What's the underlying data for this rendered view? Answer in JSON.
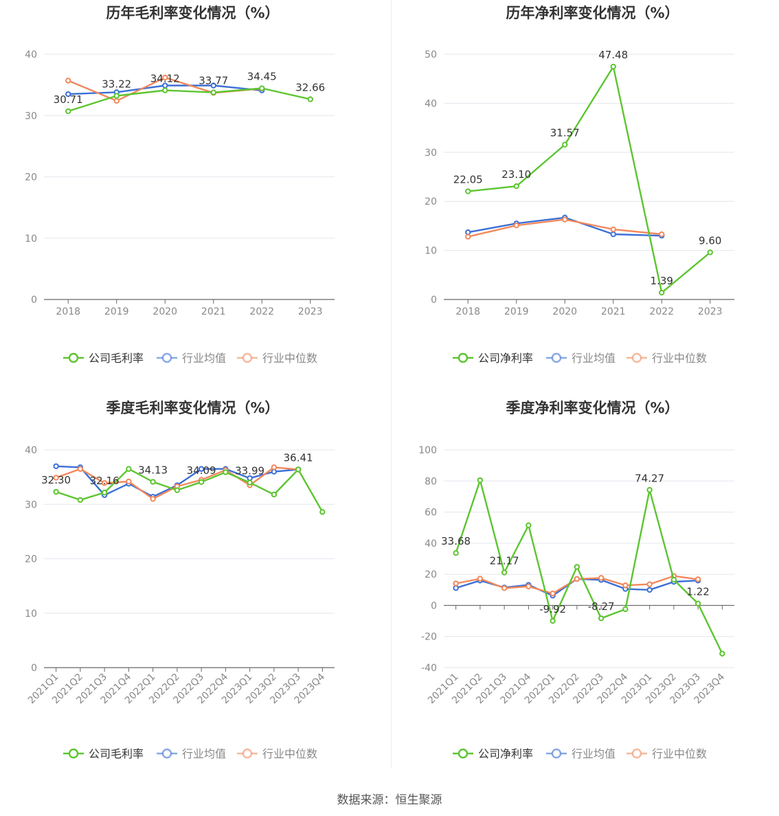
{
  "source_label": "数据来源：恒生聚源",
  "legend_labels": {
    "gross": [
      "公司毛利率",
      "行业均值",
      "行业中位数"
    ],
    "net": [
      "公司净利率",
      "行业均值",
      "行业中位数"
    ]
  },
  "colors": {
    "company": "#5cc52f",
    "avg": "#3b6fd6",
    "median": "#f2885b"
  },
  "chart_data": [
    {
      "type": "line",
      "title": "历年毛利率变化情况（%）",
      "categories": [
        "2018",
        "2019",
        "2020",
        "2021",
        "2022",
        "2023"
      ],
      "ylim": [
        0,
        40
      ],
      "yticks": [
        0,
        10,
        20,
        30,
        40
      ],
      "series": [
        {
          "name": "公司毛利率",
          "values": [
            30.71,
            33.22,
            34.12,
            33.77,
            34.45,
            32.66
          ],
          "labels": [
            "30.71",
            "33.22",
            "34.12",
            "33.77",
            "34.45",
            "32.66"
          ]
        },
        {
          "name": "行业均值",
          "values": [
            33.5,
            33.8,
            34.9,
            34.9,
            34.1,
            null
          ]
        },
        {
          "name": "行业中位数",
          "values": [
            35.7,
            32.4,
            36.2,
            33.7,
            34.4,
            null
          ]
        }
      ]
    },
    {
      "type": "line",
      "title": "历年净利率变化情况（%）",
      "categories": [
        "2018",
        "2019",
        "2020",
        "2021",
        "2022",
        "2023"
      ],
      "ylim": [
        0,
        50
      ],
      "yticks": [
        0,
        10,
        20,
        30,
        40,
        50
      ],
      "series": [
        {
          "name": "公司净利率",
          "values": [
            22.05,
            23.1,
            31.57,
            47.48,
            1.39,
            9.6
          ],
          "labels": [
            "22.05",
            "23.10",
            "31.57",
            "47.48",
            "1.39",
            "9.60"
          ]
        },
        {
          "name": "行业均值",
          "values": [
            13.7,
            15.5,
            16.7,
            13.3,
            13.0,
            null
          ]
        },
        {
          "name": "行业中位数",
          "values": [
            12.8,
            15.1,
            16.3,
            14.3,
            13.3,
            null
          ]
        }
      ]
    },
    {
      "type": "line",
      "title": "季度毛利率变化情况（%）",
      "categories": [
        "2021Q1",
        "2021Q2",
        "2021Q3",
        "2021Q4",
        "2022Q1",
        "2022Q2",
        "2022Q3",
        "2022Q4",
        "2023Q1",
        "2023Q2",
        "2023Q3",
        "2023Q4"
      ],
      "ylim": [
        0,
        40
      ],
      "yticks": [
        0,
        10,
        20,
        30,
        40
      ],
      "series": [
        {
          "name": "公司毛利率",
          "values": [
            32.3,
            30.8,
            32.16,
            36.5,
            34.13,
            32.6,
            34.09,
            35.9,
            33.99,
            31.8,
            36.41,
            28.6
          ],
          "labels": [
            "32.30",
            "",
            "32.16",
            "",
            "34.13",
            "",
            "34.09",
            "",
            "33.99",
            "",
            "36.41",
            ""
          ]
        },
        {
          "name": "行业均值",
          "values": [
            37.0,
            36.8,
            31.7,
            33.8,
            31.4,
            33.5,
            36.5,
            36.5,
            34.8,
            36.0,
            36.4,
            null
          ]
        },
        {
          "name": "行业中位数",
          "values": [
            34.9,
            36.5,
            33.9,
            34.2,
            31.0,
            33.3,
            34.5,
            36.3,
            33.5,
            36.8,
            36.4,
            null
          ]
        }
      ]
    },
    {
      "type": "line",
      "title": "季度净利率变化情况（%）",
      "categories": [
        "2021Q1",
        "2021Q2",
        "2021Q3",
        "2021Q4",
        "2022Q1",
        "2022Q2",
        "2022Q3",
        "2022Q4",
        "2023Q1",
        "2023Q2",
        "2023Q3",
        "2023Q4"
      ],
      "ylim": [
        -40,
        100
      ],
      "yticks": [
        -40,
        -20,
        0,
        20,
        40,
        60,
        80,
        100
      ],
      "series": [
        {
          "name": "公司净利率",
          "values": [
            33.68,
            80.5,
            21.17,
            51.5,
            -9.92,
            24.8,
            -8.27,
            -2.4,
            74.27,
            16.5,
            1.22,
            -31.0
          ],
          "labels": [
            "33.68",
            "",
            "21.17",
            "",
            "-9.92",
            "",
            "-8.27",
            "",
            "74.27",
            "",
            "1.22",
            ""
          ]
        },
        {
          "name": "行业均值",
          "values": [
            11.2,
            16.0,
            11.5,
            13.2,
            6.3,
            17.0,
            16.4,
            10.6,
            10.0,
            15.2,
            16.0,
            null
          ]
        },
        {
          "name": "行业中位数",
          "values": [
            14.1,
            17.2,
            11.1,
            12.2,
            7.7,
            17.0,
            17.7,
            12.9,
            13.6,
            18.9,
            16.8,
            null
          ]
        }
      ]
    }
  ]
}
